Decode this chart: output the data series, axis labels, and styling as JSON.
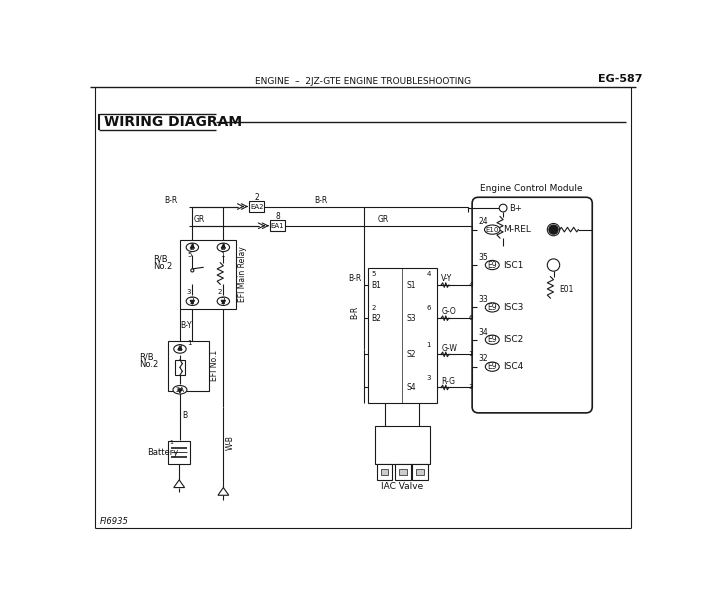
{
  "title_header": "ENGINE  –  2JZ-GTE ENGINE TROUBLESHOOTING",
  "page_ref": "EG-587",
  "diagram_title": "WIRING DIAGRAM",
  "fig_num": "FI6935",
  "bg_color": "#ffffff",
  "line_color": "#1a1a1a",
  "text_color": "#111111"
}
